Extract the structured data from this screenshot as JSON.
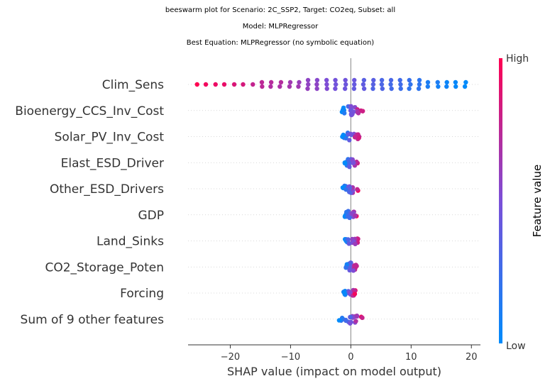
{
  "chart_data": {
    "type": "beeswarm",
    "title_lines": [
      "beeswarm plot for Scenario: 2C_SSP2, Target: CO2eq, Subset: all",
      "Model: MLPRegressor",
      "Best Equation: MLPRegressor (no symbolic equation)"
    ],
    "xlabel": "SHAP value (impact on model output)",
    "xlim": [
      -27,
      21.5
    ],
    "xticks": [
      -20,
      -10,
      0,
      10,
      20
    ],
    "xtick_labels": [
      "−20",
      "−10",
      "0",
      "10",
      "20"
    ],
    "colorbar": {
      "label": "Feature value",
      "high_label": "High",
      "low_label": "Low",
      "high_color": "#ff0051",
      "mid_color": "#7b4fd8",
      "low_color": "#008bfb"
    },
    "features": [
      {
        "name": "Clim_Sens",
        "spread": "wide",
        "min": -25.5,
        "max": 19.0
      },
      {
        "name": "Bioenergy_CCS_Inv_Cost",
        "spread": "narrow",
        "min": -1.5,
        "max": 2.0
      },
      {
        "name": "Solar_PV_Inv_Cost",
        "spread": "narrow",
        "min": -1.5,
        "max": 1.5
      },
      {
        "name": "Elast_ESD_Driver",
        "spread": "narrow",
        "min": -1.0,
        "max": 1.2
      },
      {
        "name": "Other_ESD_Drivers",
        "spread": "narrow",
        "min": -1.5,
        "max": 1.2
      },
      {
        "name": "GDP",
        "spread": "narrow",
        "min": -1.0,
        "max": 1.0
      },
      {
        "name": "Land_Sinks",
        "spread": "narrow",
        "min": -1.0,
        "max": 1.2
      },
      {
        "name": "CO2_Storage_Poten",
        "spread": "narrow",
        "min": -1.0,
        "max": 1.0
      },
      {
        "name": "Forcing",
        "spread": "narrow",
        "min": -1.2,
        "max": 0.8
      },
      {
        "name": "Sum of 9 other features",
        "spread": "narrow",
        "min": -2.0,
        "max": 2.0
      }
    ],
    "grid": false
  }
}
